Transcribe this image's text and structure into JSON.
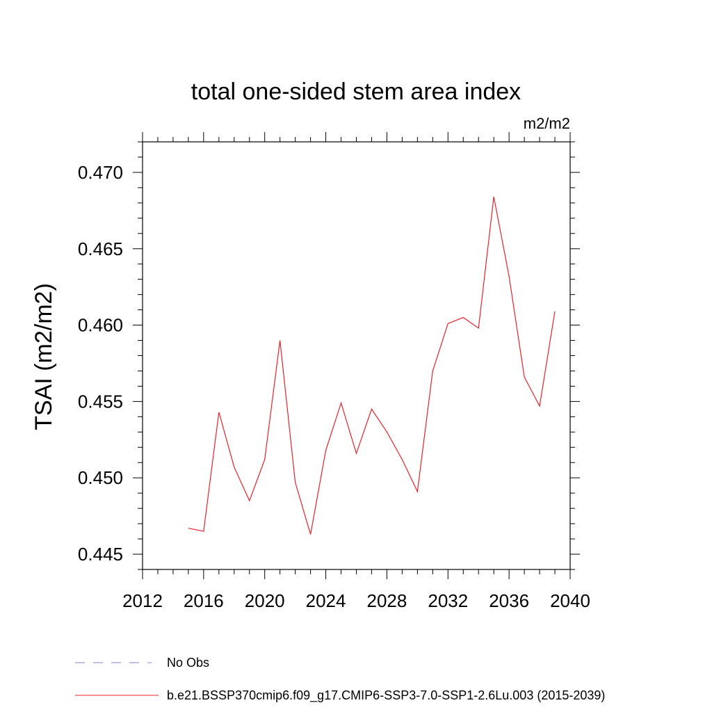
{
  "chart_data": {
    "type": "line",
    "title": "total one-sided stem area index",
    "units": "m2/m2",
    "xlabel": "",
    "ylabel": "TSAI  (m2/m2)",
    "xlim": [
      2012,
      2040
    ],
    "ylim": [
      0.444,
      0.472
    ],
    "x_ticks": [
      2012,
      2016,
      2020,
      2024,
      2028,
      2032,
      2036,
      2040
    ],
    "x_tick_labels": [
      "2012",
      "2016",
      "2020",
      "2024",
      "2028",
      "2032",
      "2036",
      "2040"
    ],
    "y_ticks": [
      0.445,
      0.45,
      0.455,
      0.46,
      0.465,
      0.47
    ],
    "y_tick_labels": [
      "0.445",
      "0.450",
      "0.455",
      "0.460",
      "0.465",
      "0.470"
    ],
    "grid": false,
    "legend_position": "bottom",
    "series": [
      {
        "name": "No Obs",
        "color": "#8a7fc0",
        "style": "dashed",
        "x": [],
        "values": []
      },
      {
        "name": "b.e21.BSSP370cmip6.f09_g17.CMIP6-SSP3-7.0-SSP1-2.6Lu.003 (2015-2039)",
        "color": "#e8212a",
        "style": "solid",
        "x": [
          2015,
          2016,
          2017,
          2018,
          2019,
          2020,
          2021,
          2022,
          2023,
          2024,
          2025,
          2026,
          2027,
          2028,
          2029,
          2030,
          2031,
          2032,
          2033,
          2034,
          2035,
          2036,
          2037,
          2038,
          2039
        ],
        "values": [
          0.4467,
          0.4465,
          0.4543,
          0.4507,
          0.4485,
          0.4512,
          0.459,
          0.4497,
          0.4463,
          0.4518,
          0.4549,
          0.4516,
          0.4545,
          0.453,
          0.4512,
          0.4491,
          0.457,
          0.4601,
          0.4605,
          0.4598,
          0.4684,
          0.4632,
          0.4566,
          0.4547,
          0.4609
        ]
      }
    ]
  }
}
